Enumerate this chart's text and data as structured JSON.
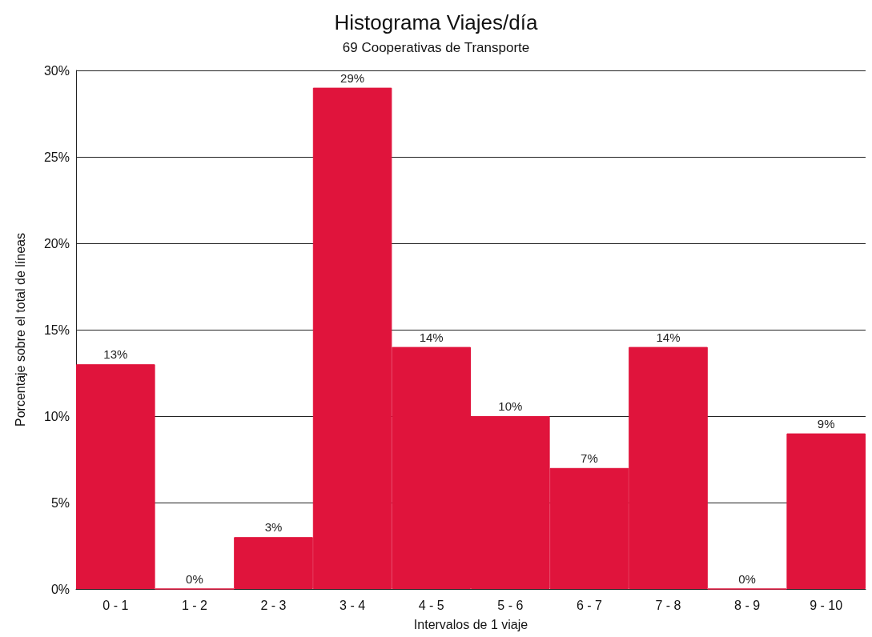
{
  "chart_data": {
    "type": "bar",
    "title": "Histograma Viajes/día",
    "subtitle": "69 Cooperativas de Transporte",
    "xlabel": "Intervalos de 1 viaje",
    "ylabel": "Porcentaje sobre el total de líneas",
    "categories": [
      "0 - 1",
      "1 - 2",
      "2 - 3",
      "3 - 4",
      "4 - 5",
      "5 - 6",
      "6 - 7",
      "7 - 8",
      "8 - 9",
      "9 - 10"
    ],
    "values": [
      13,
      0,
      3,
      29,
      14,
      10,
      7,
      14,
      0,
      9
    ],
    "value_labels": [
      "13%",
      "0%",
      "3%",
      "29%",
      "14%",
      "10%",
      "7%",
      "14%",
      "0%",
      "9%"
    ],
    "color": "#e0143c",
    "ylim": [
      0,
      30
    ],
    "yticks": [
      {
        "value": 0,
        "label": "0%"
      },
      {
        "value": 5,
        "label": "5%"
      },
      {
        "value": 10,
        "label": "10%"
      },
      {
        "value": 15,
        "label": "15%"
      },
      {
        "value": 20,
        "label": "20%"
      },
      {
        "value": 25,
        "label": "25%"
      },
      {
        "value": 30,
        "label": "30%"
      }
    ],
    "grid": "y"
  }
}
